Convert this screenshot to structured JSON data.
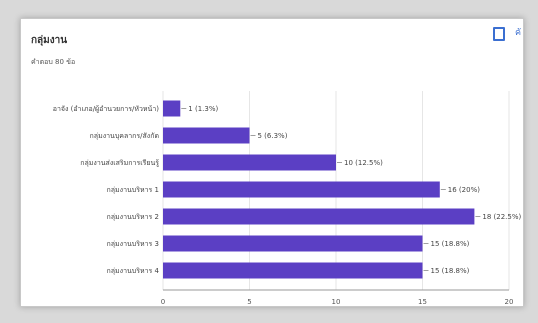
{
  "card": {
    "title": "กลุ่มงาน",
    "subtitle": "คำตอบ 80 ข้อ",
    "copy_label": "คั"
  },
  "colors": {
    "bar": "#5b3fc4",
    "grid": "#e6e6e6",
    "axis": "#999999"
  },
  "icons": {
    "copy": "copy-icon"
  },
  "chart_data": {
    "type": "bar",
    "orientation": "horizontal",
    "title": "กลุ่มงาน",
    "categories": [
      "อาจัง (อำเภอ/ผู้อำนวยการ/หัวหน้า)",
      "กลุ่มงานบุคลากร/สังกัด",
      "กลุ่มงานส่งเสริมการเรียนรู้",
      "กลุ่มงานบริหาร 1",
      "กลุ่มงานบริหาร 2",
      "กลุ่มงานบริหาร 3",
      "กลุ่มงานบริหาร 4"
    ],
    "values": [
      1,
      5,
      10,
      16,
      18,
      15,
      15
    ],
    "value_labels": [
      "1 (1.3%)",
      "5 (6.3%)",
      "10 (12.5%)",
      "16 (20%)",
      "18 (22.5%)",
      "15 (18.8%)",
      "15 (18.8%)"
    ],
    "xlim": [
      0,
      20
    ],
    "xticks": [
      0,
      5,
      10,
      15,
      20
    ],
    "grid": true,
    "legend": "none"
  }
}
